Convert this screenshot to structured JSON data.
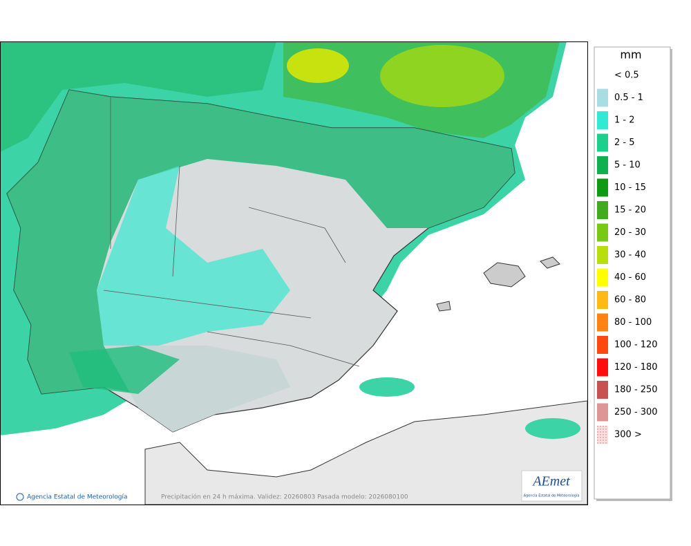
{
  "legend": {
    "unit": "mm",
    "items": [
      {
        "label": "< 0.5"
      },
      {
        "label": "0.5 - 1",
        "color": "#a9dde4"
      },
      {
        "label": "1 - 2",
        "color": "#30ead6"
      },
      {
        "label": "2 - 5",
        "color": "#1ccf8a"
      },
      {
        "label": "5 - 10",
        "color": "#10b04f"
      },
      {
        "label": "10 - 15",
        "color": "#0e9a12"
      },
      {
        "label": "15 - 20",
        "color": "#40ab1e"
      },
      {
        "label": "20 - 30",
        "color": "#78c814"
      },
      {
        "label": "30 - 40",
        "color": "#b8de0e"
      },
      {
        "label": "40 - 60",
        "color": "#ffff00"
      },
      {
        "label": "60 - 80",
        "color": "#ffb916"
      },
      {
        "label": "80 - 100",
        "color": "#ff8312"
      },
      {
        "label": "100 - 120",
        "color": "#ff4810"
      },
      {
        "label": "120 - 180",
        "color": "#ff0c0c"
      },
      {
        "label": "180 - 250",
        "color": "#c85252"
      },
      {
        "label": "250 - 300",
        "color": "#dd9595"
      },
      {
        "label": "300 >",
        "color": "#f3d2d2"
      }
    ]
  },
  "footer": {
    "credit": "Agencia Estatal de Meteorología",
    "caption": "Precipitación en 24 h máxima. Validez: 20260803 Pasada modelo: 2026080100"
  },
  "logo": {
    "name": "AEmet",
    "subtitle": "Agencia Estatal de Meteorología"
  }
}
